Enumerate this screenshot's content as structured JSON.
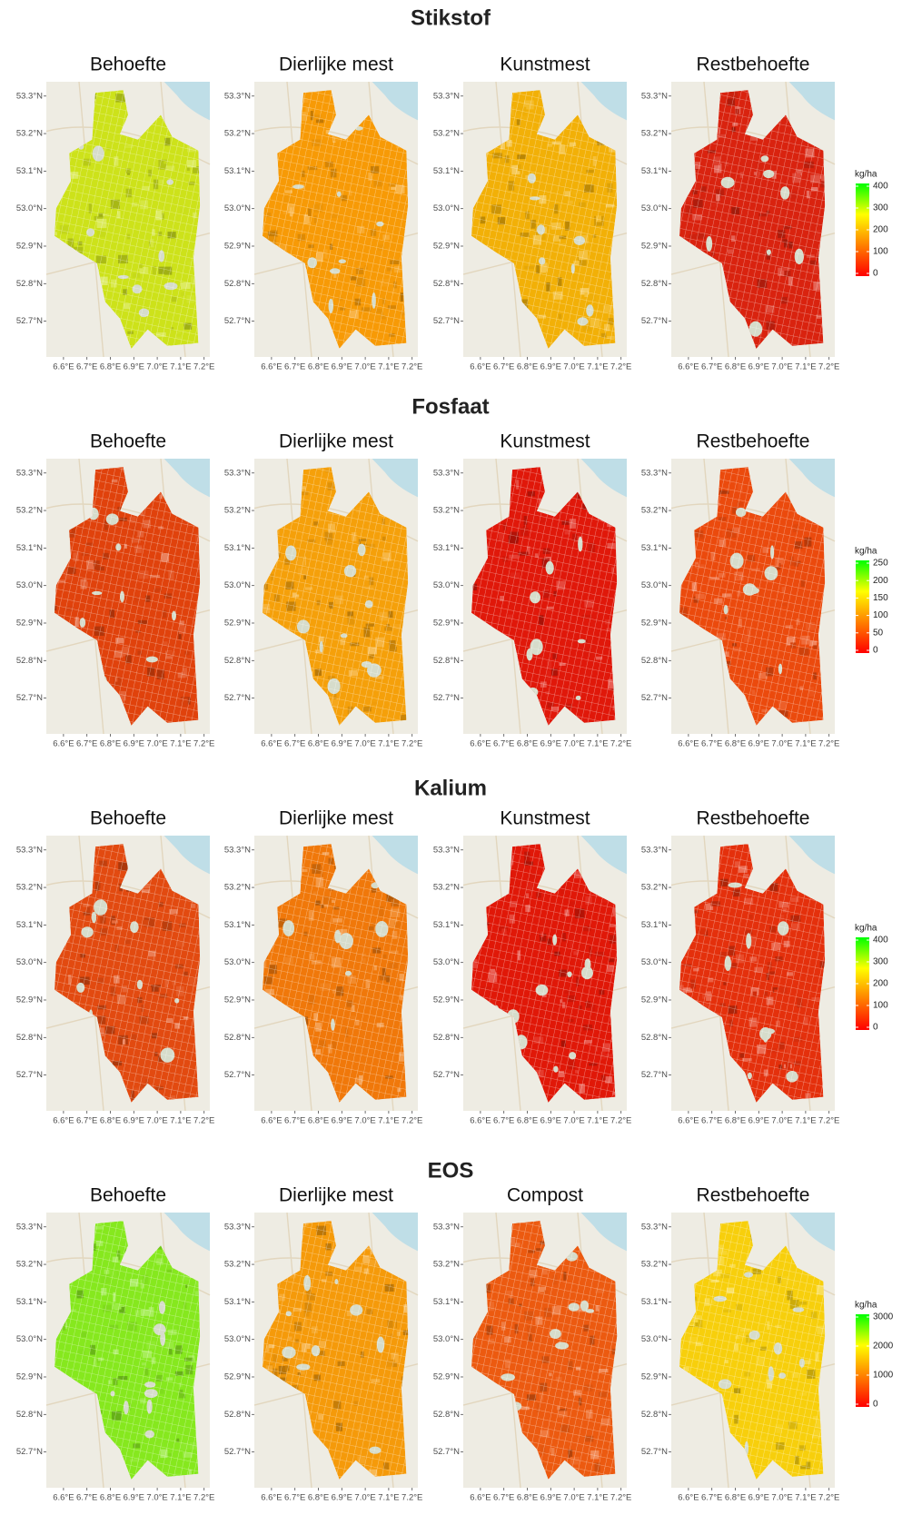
{
  "lat_ticks": [
    {
      "value": 53.3,
      "label": "53.3°N"
    },
    {
      "value": 53.2,
      "label": "53.2°N"
    },
    {
      "value": 53.1,
      "label": "53.1°N"
    },
    {
      "value": 53.0,
      "label": "53.0°N"
    },
    {
      "value": 52.9,
      "label": "52.9°N"
    },
    {
      "value": 52.8,
      "label": "52.8°N"
    },
    {
      "value": 52.7,
      "label": "52.7°N"
    }
  ],
  "lon_ticks": [
    {
      "value": 6.6,
      "label": "6.6°E"
    },
    {
      "value": 6.7,
      "label": "6.7°E"
    },
    {
      "value": 6.8,
      "label": "6.8°E"
    },
    {
      "value": 6.9,
      "label": "6.9°E"
    },
    {
      "value": 7.0,
      "label": "7.0°E"
    },
    {
      "value": 7.1,
      "label": "7.1°E"
    },
    {
      "value": 7.2,
      "label": "7.2°E"
    }
  ],
  "legend_colors": [
    "#ff0000",
    "#ff8000",
    "#ffff00",
    "#00ff00"
  ],
  "sections": [
    {
      "title": "Stikstof",
      "panels": [
        {
          "title": "Behoefte",
          "color": "#cde21a"
        },
        {
          "title": "Dierlijke mest",
          "color": "#f79a06"
        },
        {
          "title": "Kunstmest",
          "color": "#f2b007"
        },
        {
          "title": "Restbehoefte",
          "color": "#d9230f"
        }
      ],
      "legend": {
        "title": "kg/ha",
        "ticks": [
          0,
          100,
          200,
          300,
          400
        ]
      }
    },
    {
      "title": "Fosfaat",
      "panels": [
        {
          "title": "Behoefte",
          "color": "#e0420c"
        },
        {
          "title": "Dierlijke mest",
          "color": "#f5a00a"
        },
        {
          "title": "Kunstmest",
          "color": "#e0180a"
        },
        {
          "title": "Restbehoefte",
          "color": "#eb4a0d"
        }
      ],
      "legend": {
        "title": "kg/ha",
        "ticks": [
          0,
          50,
          100,
          150,
          200,
          250
        ]
      }
    },
    {
      "title": "Kalium",
      "panels": [
        {
          "title": "Behoefte",
          "color": "#e24a10"
        },
        {
          "title": "Dierlijke mest",
          "color": "#f0780a"
        },
        {
          "title": "Kunstmest",
          "color": "#e01808"
        },
        {
          "title": "Restbehoefte",
          "color": "#e4300c"
        }
      ],
      "legend": {
        "title": "kg/ha",
        "ticks": [
          0,
          100,
          200,
          300,
          400
        ]
      }
    },
    {
      "title": "EOS",
      "panels": [
        {
          "title": "Behoefte",
          "color": "#86e81e"
        },
        {
          "title": "Dierlijke mest",
          "color": "#f59a0a"
        },
        {
          "title": "Compost",
          "color": "#ec5a10"
        },
        {
          "title": "Restbehoefte",
          "color": "#f7cf0c"
        }
      ],
      "legend": {
        "title": "kg/ha",
        "ticks": [
          0,
          1000,
          2000,
          3000
        ]
      }
    }
  ]
}
